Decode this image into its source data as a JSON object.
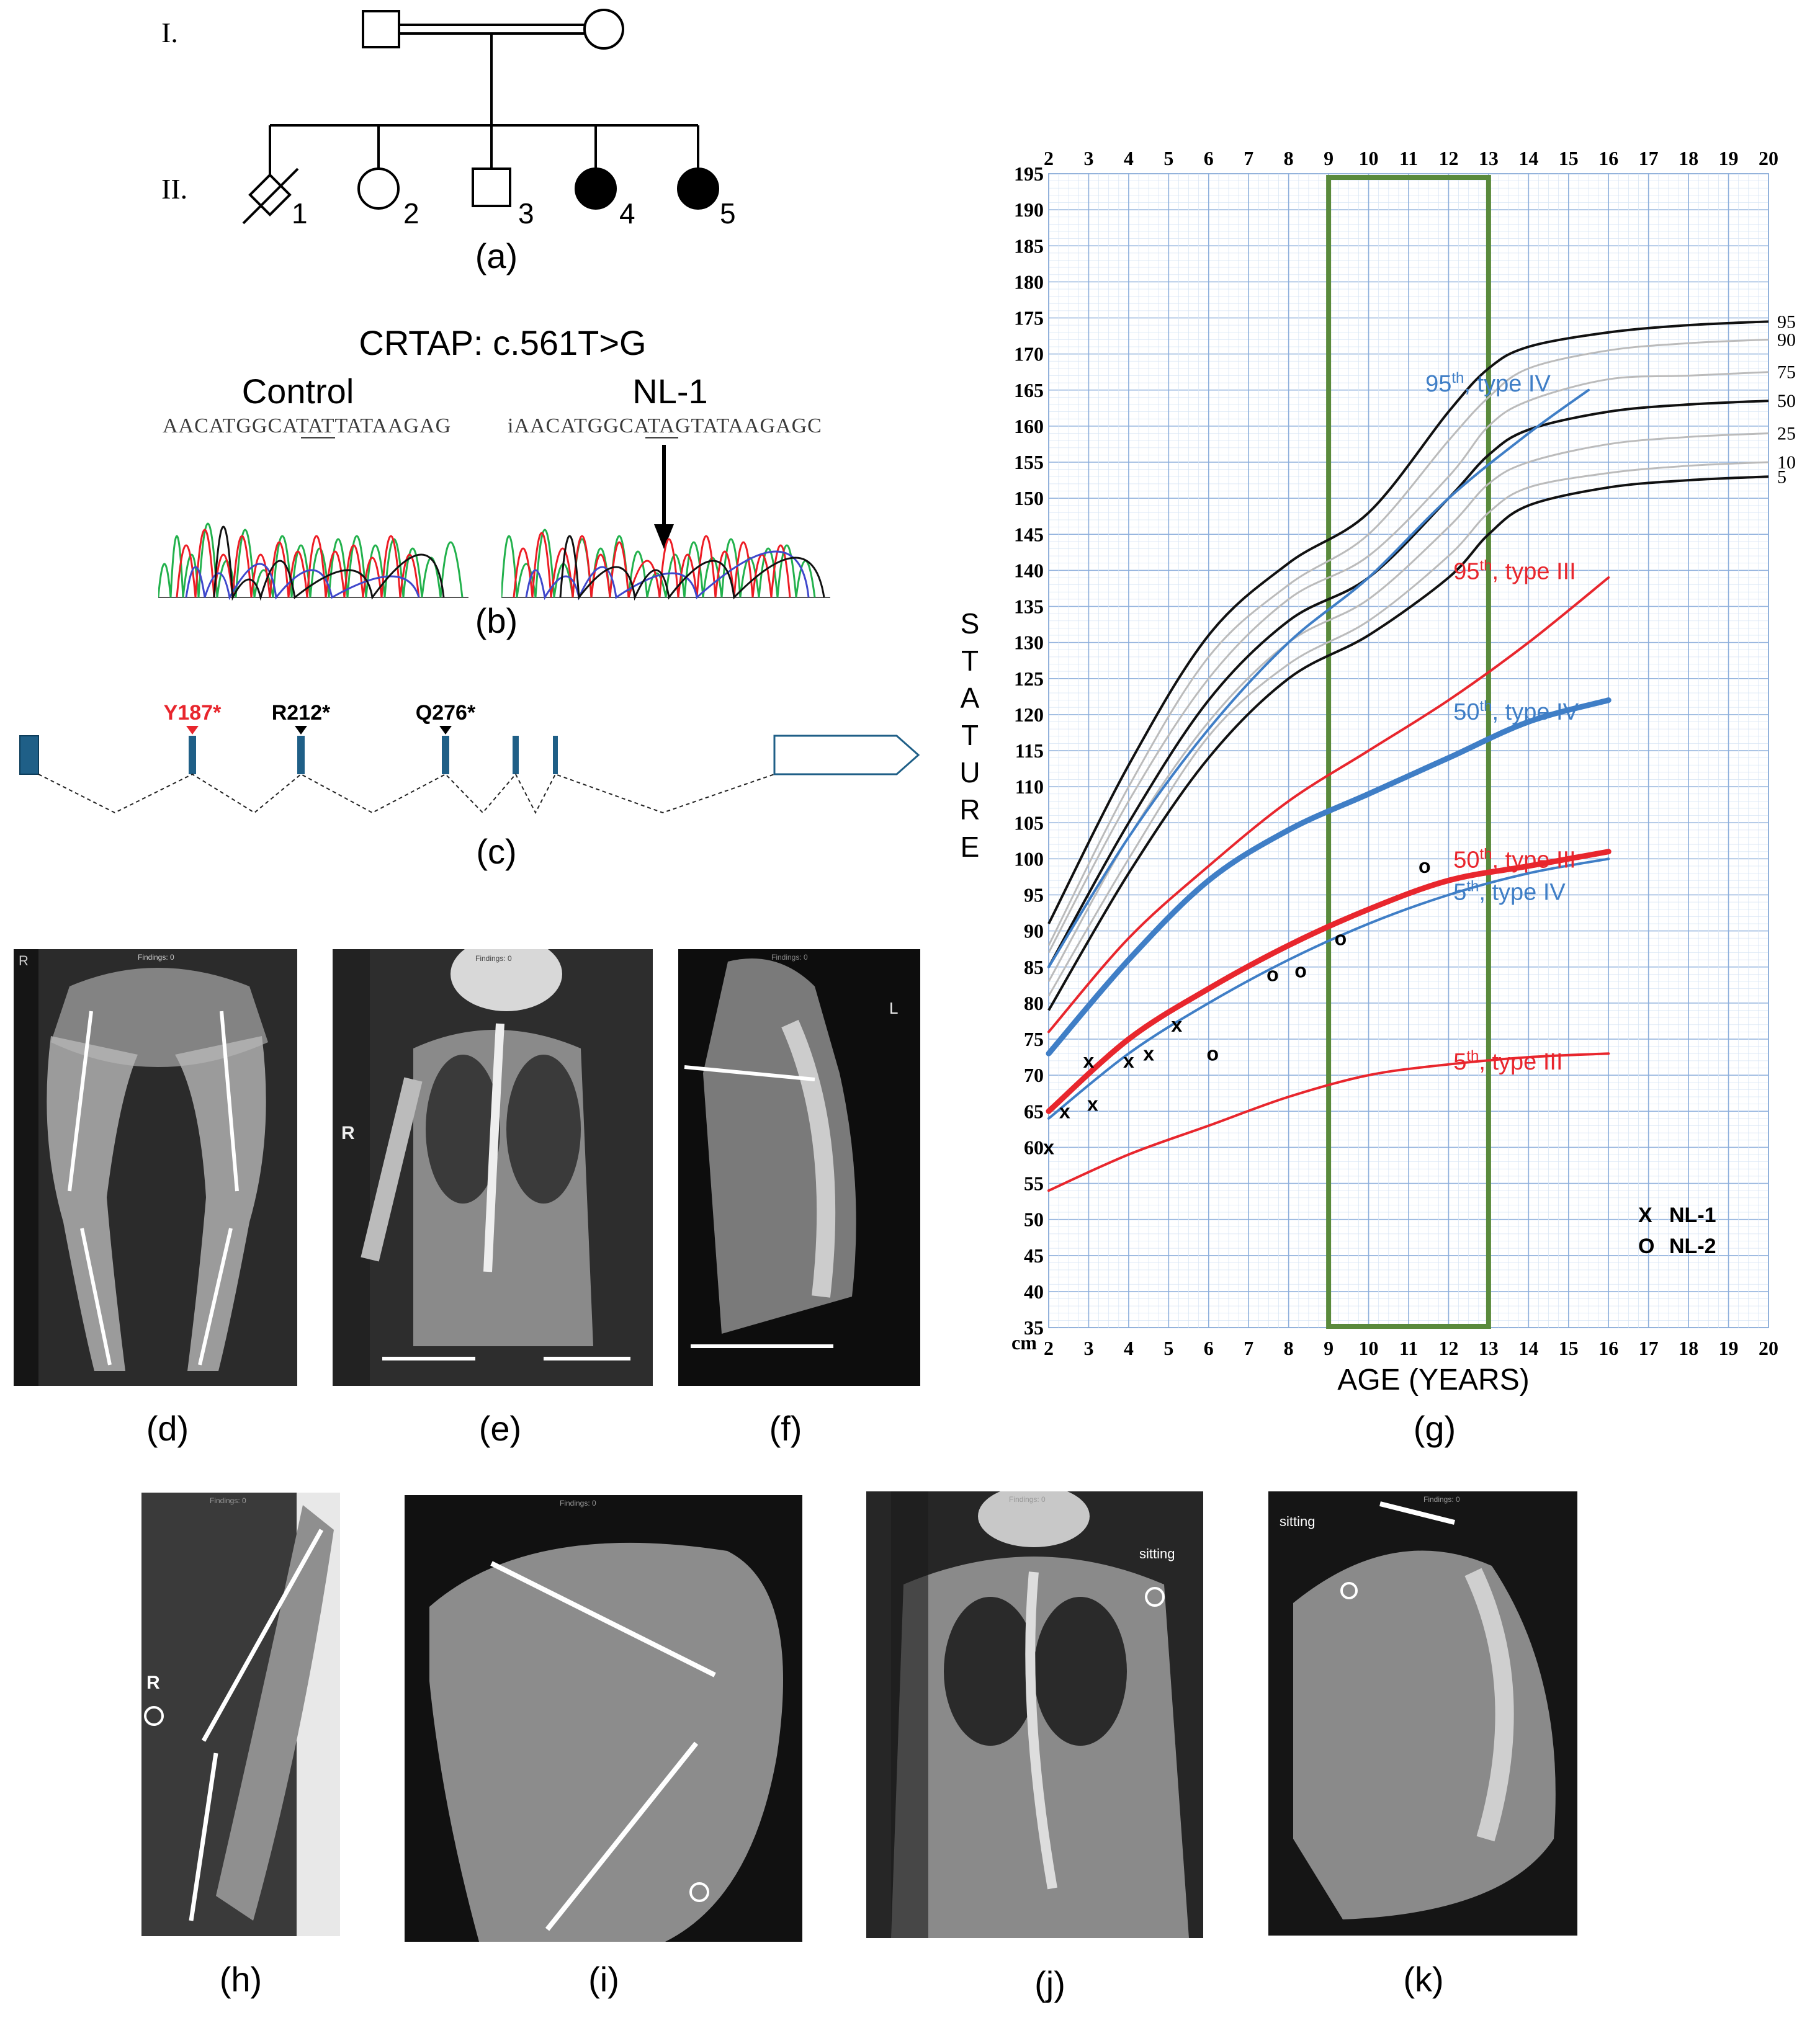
{
  "panels": {
    "a": {
      "label": "(a)",
      "generations": [
        "I.",
        "II."
      ],
      "individuals": [
        "1",
        "2",
        "3",
        "4",
        "5"
      ]
    },
    "b": {
      "label": "(b)",
      "title": "CRTAP: c.561T>G",
      "control_label": "Control",
      "patient_label": "NL-1",
      "control_seq": "AACATGGCATATTATAAGAG",
      "patient_seq": "iAACATGGCATAGTATAAGAGC"
    },
    "c": {
      "label": "(c)",
      "mutations": [
        {
          "name": "Y187*",
          "color": "#e8262d"
        },
        {
          "name": "R212*",
          "color": "#000000"
        },
        {
          "name": "Q276*",
          "color": "#000000"
        }
      ]
    },
    "d": {
      "label": "(d)",
      "marker": "R",
      "findings": "Findings: 0"
    },
    "e": {
      "label": "(e)",
      "marker": "R",
      "findings": "Findings: 0"
    },
    "f": {
      "label": "(f)",
      "marker": "L",
      "findings": "Findings: 0"
    },
    "h": {
      "label": "(h)",
      "marker": "R",
      "findings": "Findings: 0"
    },
    "i": {
      "label": "(i)",
      "findings": "Findings: 0"
    },
    "j": {
      "label": "(j)",
      "sitting": "sitting",
      "findings": "Findings: 0"
    },
    "k": {
      "label": "(k)",
      "sitting": "sitting",
      "findings": "Findings: 0"
    },
    "g": {
      "label": "(g)"
    }
  },
  "chart_data": {
    "type": "line",
    "xlabel": "AGE (YEARS)",
    "ylabel": "STATURE",
    "yunit": "cm",
    "xlim": [
      2,
      20
    ],
    "ylim": [
      35,
      195
    ],
    "x_ticks": [
      2,
      3,
      4,
      5,
      6,
      7,
      8,
      9,
      10,
      11,
      12,
      13,
      14,
      15,
      16,
      17,
      18,
      19,
      20
    ],
    "y_ticks": [
      35,
      40,
      45,
      50,
      55,
      60,
      65,
      70,
      75,
      80,
      85,
      90,
      95,
      100,
      105,
      110,
      115,
      120,
      125,
      130,
      135,
      140,
      145,
      150,
      155,
      160,
      165,
      170,
      175,
      180,
      185,
      190,
      195
    ],
    "highlight_range": [
      9,
      13
    ],
    "highlight_color": "#5a8a3c",
    "reference_percentiles": [
      {
        "name": "95",
        "color": "#111111",
        "x": [
          2,
          4,
          6,
          8,
          10,
          12,
          13,
          14,
          16,
          18,
          20
        ],
        "y": [
          91,
          113,
          131,
          141,
          148,
          162,
          168,
          171,
          173,
          174,
          174.5
        ]
      },
      {
        "name": "90",
        "color": "#bbbbbb",
        "x": [
          2,
          4,
          6,
          8,
          10,
          12,
          13,
          14,
          16,
          18,
          20
        ],
        "y": [
          88,
          110,
          128,
          138,
          145,
          158,
          164,
          168,
          170.5,
          171.5,
          172
        ]
      },
      {
        "name": "75",
        "color": "#bbbbbb",
        "x": [
          2,
          4,
          6,
          8,
          10,
          12,
          13,
          14,
          16,
          18,
          20
        ],
        "y": [
          87,
          108,
          125,
          136,
          142,
          153,
          160,
          163.5,
          166.5,
          167,
          167.5
        ]
      },
      {
        "name": "50",
        "color": "#111111",
        "x": [
          2,
          4,
          6,
          8,
          10,
          12,
          13,
          14,
          16,
          18,
          20
        ],
        "y": [
          85,
          105,
          122,
          133,
          139,
          150,
          156,
          159.5,
          162,
          163,
          163.5
        ]
      },
      {
        "name": "25",
        "color": "#bbbbbb",
        "x": [
          2,
          4,
          6,
          8,
          10,
          12,
          13,
          14,
          16,
          18,
          20
        ],
        "y": [
          83,
          103,
          119,
          130,
          136,
          146,
          152,
          155,
          157.5,
          158.5,
          159
        ]
      },
      {
        "name": "10",
        "color": "#bbbbbb",
        "x": [
          2,
          4,
          6,
          8,
          10,
          12,
          13,
          14,
          16,
          18,
          20
        ],
        "y": [
          81,
          100,
          117,
          127,
          133,
          142,
          148,
          151.5,
          153.5,
          154.5,
          155
        ]
      },
      {
        "name": "5",
        "color": "#111111",
        "x": [
          2,
          4,
          6,
          8,
          10,
          12,
          13,
          14,
          16,
          18,
          20
        ],
        "y": [
          79,
          98,
          114,
          125,
          131,
          139,
          145,
          149,
          151.5,
          152.5,
          153
        ]
      }
    ],
    "series": [
      {
        "name": "95th, type IV",
        "color": "#3f7ec6",
        "width": 4,
        "x": [
          2,
          4,
          6,
          8,
          10,
          12,
          14,
          15.5
        ],
        "y": [
          85,
          103,
          118,
          130,
          139,
          150,
          159,
          165
        ]
      },
      {
        "name": "50th, type IV",
        "color": "#3f7ec6",
        "width": 9,
        "x": [
          2,
          4,
          6,
          8,
          10,
          12,
          14,
          16
        ],
        "y": [
          73,
          86,
          97,
          104,
          109,
          114,
          119,
          122
        ]
      },
      {
        "name": "5th, type IV",
        "color": "#3f7ec6",
        "width": 4,
        "x": [
          2,
          4,
          6,
          8,
          10,
          12,
          14,
          16
        ],
        "y": [
          64,
          73,
          80,
          86,
          91,
          95,
          98,
          100
        ]
      },
      {
        "name": "95th, type III",
        "color": "#e8262d",
        "width": 4,
        "x": [
          2,
          4,
          6,
          8,
          10,
          12,
          14,
          16
        ],
        "y": [
          76,
          89,
          99,
          108,
          115,
          122,
          130,
          139
        ]
      },
      {
        "name": "50th, type III",
        "color": "#e8262d",
        "width": 9,
        "x": [
          2,
          4,
          6,
          8,
          10,
          12,
          14,
          16
        ],
        "y": [
          65,
          75,
          82,
          88,
          93,
          97,
          99,
          101
        ]
      },
      {
        "name": "5th, type III",
        "color": "#e8262d",
        "width": 4,
        "x": [
          2,
          4,
          6,
          8,
          10,
          12,
          14,
          16
        ],
        "y": [
          54,
          59,
          63,
          67,
          70,
          71.5,
          72.5,
          73
        ]
      }
    ],
    "patients": [
      {
        "name": "NL-1",
        "marker": "X",
        "x": [
          2,
          2.4,
          3,
          3.1,
          4,
          4.5,
          5.2
        ],
        "y": [
          60,
          65,
          72,
          66,
          72,
          73,
          77
        ]
      },
      {
        "name": "NL-2",
        "marker": "O",
        "x": [
          6.1,
          7.6,
          8.3,
          9.3,
          11.4
        ],
        "y": [
          73,
          84,
          84.5,
          89,
          99
        ]
      }
    ],
    "label_percentiles": [
      "95",
      "90",
      "75",
      "50",
      "25",
      "10",
      "5"
    ]
  }
}
